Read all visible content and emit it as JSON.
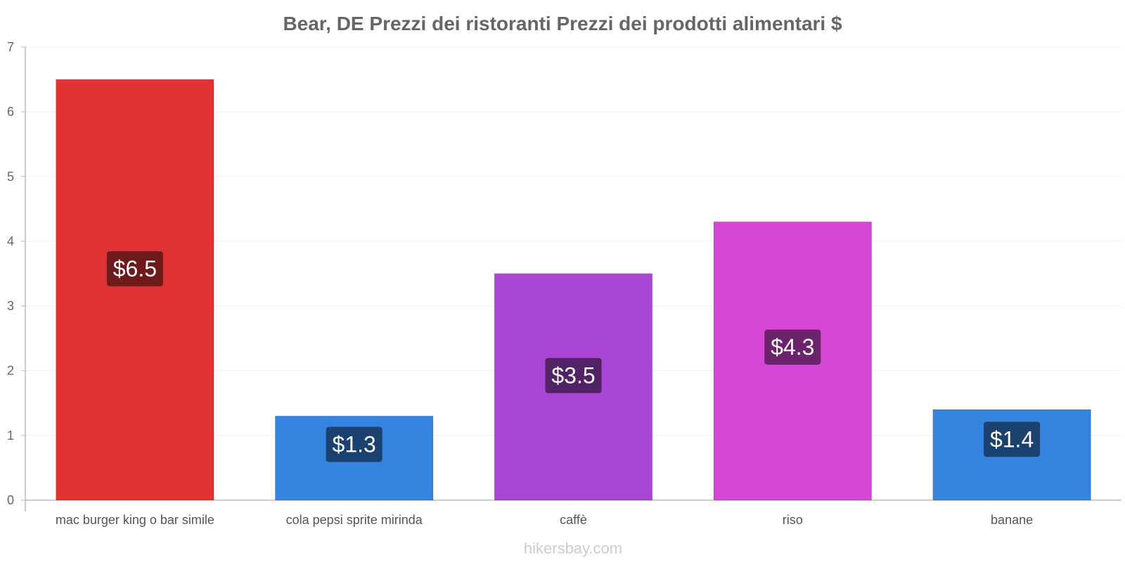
{
  "chart_data": {
    "type": "bar",
    "title": "Bear, DE Prezzi dei ristoranti Prezzi dei prodotti alimentari $",
    "categories": [
      "mac burger king o bar simile",
      "cola pepsi sprite mirinda",
      "caffè",
      "riso",
      "banane"
    ],
    "values": [
      6.5,
      1.3,
      3.5,
      4.3,
      1.4
    ],
    "value_labels": [
      "$6.5",
      "$1.3",
      "$3.5",
      "$4.3",
      "$1.4"
    ],
    "colors": [
      "#e03434",
      "#3584e0",
      "#a946d6",
      "#d647d6",
      "#3584e0"
    ],
    "label_bg_colors": [
      "#6e1a1a",
      "#1a4170",
      "#522266",
      "#6b236b",
      "#1a4170"
    ],
    "ylim": [
      0,
      7
    ],
    "yticks": [
      0,
      1,
      2,
      3,
      4,
      5,
      6,
      7
    ],
    "xlabel": "",
    "ylabel": "",
    "grid": true
  },
  "footer": "hikersbay.com"
}
